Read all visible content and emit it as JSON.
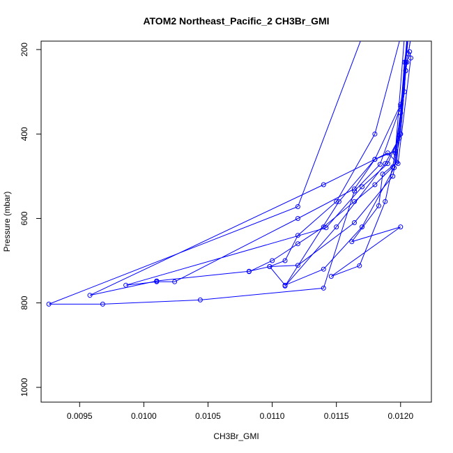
{
  "chart_data": {
    "type": "line",
    "title": "ATOM2 Northeast_Pacific_2 CH3Br_GMI",
    "xlabel": "CH3Br_GMI",
    "ylabel": "Pressure (mbar)",
    "xlim": [
      0.0092,
      0.01224
    ],
    "ylim": [
      1035,
      180
    ],
    "y_reversed": true,
    "x_ticks": [
      0.0095,
      0.01,
      0.0105,
      0.011,
      0.0115,
      0.012
    ],
    "x_tick_labels": [
      "0.0095",
      "0.0100",
      "0.0105",
      "0.0110",
      "0.0115",
      "0.0120"
    ],
    "y_ticks": [
      200,
      400,
      600,
      800,
      1000
    ],
    "y_tick_labels": [
      "200",
      "400",
      "600",
      "800",
      "1000"
    ],
    "grid": false,
    "color": "#0000ff",
    "marker": "open-circle",
    "series": [
      {
        "points": [
          [
            0.01206,
            170
          ],
          [
            0.01203,
            230
          ],
          [
            0.012,
            350
          ],
          [
            0.01194,
            478
          ],
          [
            0.0118,
            520
          ],
          [
            0.01164,
            560
          ],
          [
            0.0114,
            620
          ],
          [
            0.0112,
            660
          ],
          [
            0.011,
            700
          ],
          [
            0.01082,
            726
          ]
        ]
      },
      {
        "points": [
          [
            0.0117,
            170
          ],
          [
            0.0112,
            572
          ],
          [
            0.00926,
            803
          ],
          [
            0.00968,
            803
          ],
          [
            0.01044,
            793
          ],
          [
            0.0114,
            765
          ],
          [
            0.01164,
            535
          ],
          [
            0.01184,
            472
          ],
          [
            0.012,
            335
          ],
          [
            0.01205,
            230
          ],
          [
            0.01208,
            172
          ]
        ]
      },
      {
        "points": [
          [
            0.01208,
            170
          ],
          [
            0.01204,
            250
          ],
          [
            0.012,
            400
          ],
          [
            0.0119,
            470
          ],
          [
            0.0117,
            525
          ],
          [
            0.01142,
            622
          ],
          [
            0.00986,
            758
          ],
          [
            0.0101,
            750
          ],
          [
            0.01024,
            750
          ],
          [
            0.0112,
            600
          ],
          [
            0.01164,
            530
          ],
          [
            0.0118,
            460
          ],
          [
            0.012,
            330
          ],
          [
            0.01206,
            210
          ]
        ]
      },
      {
        "points": [
          [
            0.01207,
            205
          ],
          [
            0.01208,
            220
          ],
          [
            0.01198,
            470
          ],
          [
            0.0119,
            445
          ],
          [
            0.0114,
            520
          ],
          [
            0.00958,
            782
          ],
          [
            0.0101,
            748
          ],
          [
            0.01082,
            725
          ],
          [
            0.01098,
            714
          ],
          [
            0.0112,
            711
          ],
          [
            0.01164,
            610
          ],
          [
            0.01194,
            500
          ],
          [
            0.012,
            400
          ],
          [
            0.01204,
            250
          ]
        ]
      },
      {
        "points": [
          [
            0.01203,
            170
          ],
          [
            0.01196,
            440
          ],
          [
            0.0118,
            460
          ],
          [
            0.01152,
            560
          ],
          [
            0.0111,
            760
          ],
          [
            0.0115,
            620
          ],
          [
            0.01188,
            470
          ],
          [
            0.01199,
            410
          ],
          [
            0.01204,
            230
          ],
          [
            0.01206,
            170
          ]
        ]
      },
      {
        "points": [
          [
            0.01205,
            170
          ],
          [
            0.01197,
            467
          ],
          [
            0.01186,
            495
          ],
          [
            0.01183,
            570
          ],
          [
            0.01162,
            655
          ],
          [
            0.012,
            620
          ],
          [
            0.01146,
            737
          ],
          [
            0.01168,
            712
          ],
          [
            0.01188,
            560
          ],
          [
            0.01196,
            445
          ],
          [
            0.012,
            350
          ],
          [
            0.01204,
            230
          ],
          [
            0.01206,
            170
          ]
        ]
      },
      {
        "points": [
          [
            0.012,
            170
          ],
          [
            0.0118,
            400
          ],
          [
            0.0115,
            560
          ],
          [
            0.0112,
            640
          ],
          [
            0.0111,
            700
          ],
          [
            0.01098,
            714
          ],
          [
            0.0111,
            758
          ],
          [
            0.0114,
            720
          ],
          [
            0.0117,
            620
          ],
          [
            0.01195,
            480
          ],
          [
            0.01203,
            300
          ],
          [
            0.01205,
            170
          ]
        ]
      }
    ]
  }
}
